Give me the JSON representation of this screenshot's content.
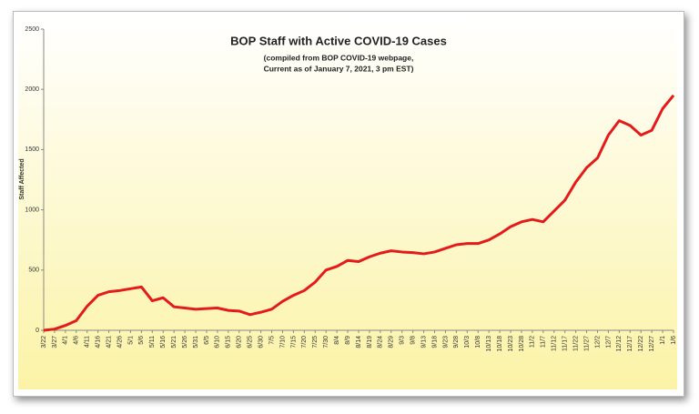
{
  "chart_data": {
    "type": "line",
    "title": "BOP Staff with Active COVID-19 Cases",
    "subtitle": [
      "(compiled from BOP COVID-19 webpage,",
      "Current as of January 7, 2021, 3 pm EST)"
    ],
    "y_label": "Staff Affected",
    "categories": [
      "3/22",
      "3/27",
      "4/1",
      "4/6",
      "4/11",
      "4/16",
      "4/21",
      "4/26",
      "5/1",
      "5/6",
      "5/11",
      "5/16",
      "5/21",
      "5/26",
      "5/31",
      "6/5",
      "6/10",
      "6/15",
      "6/20",
      "6/25",
      "6/30",
      "7/5",
      "7/10",
      "7/15",
      "7/20",
      "7/25",
      "7/30",
      "8/4",
      "8/9",
      "8/14",
      "8/19",
      "8/24",
      "8/29",
      "9/3",
      "9/8",
      "9/13",
      "9/18",
      "9/23",
      "9/28",
      "10/3",
      "10/8",
      "10/13",
      "10/18",
      "10/23",
      "10/28",
      "11/2",
      "11/7",
      "11/12",
      "11/17",
      "11/22",
      "11/27",
      "12/2",
      "12/7",
      "12/12",
      "12/17",
      "12/22",
      "12/27",
      "1/1",
      "1/6"
    ],
    "values": [
      0,
      10,
      40,
      80,
      200,
      290,
      320,
      330,
      345,
      360,
      245,
      270,
      195,
      185,
      175,
      180,
      185,
      165,
      160,
      130,
      150,
      175,
      240,
      290,
      330,
      400,
      500,
      530,
      580,
      570,
      610,
      640,
      660,
      650,
      645,
      635,
      650,
      680,
      710,
      720,
      720,
      750,
      800,
      860,
      900,
      920,
      900,
      990,
      1080,
      1230,
      1350,
      1430,
      1620,
      1740,
      1700,
      1620,
      1660,
      1840,
      1950
    ],
    "color": "#e31b1b",
    "ylim": [
      0,
      2500
    ],
    "yticks": [
      0,
      500,
      1000,
      1500,
      2000,
      2500
    ],
    "grid": false
  }
}
